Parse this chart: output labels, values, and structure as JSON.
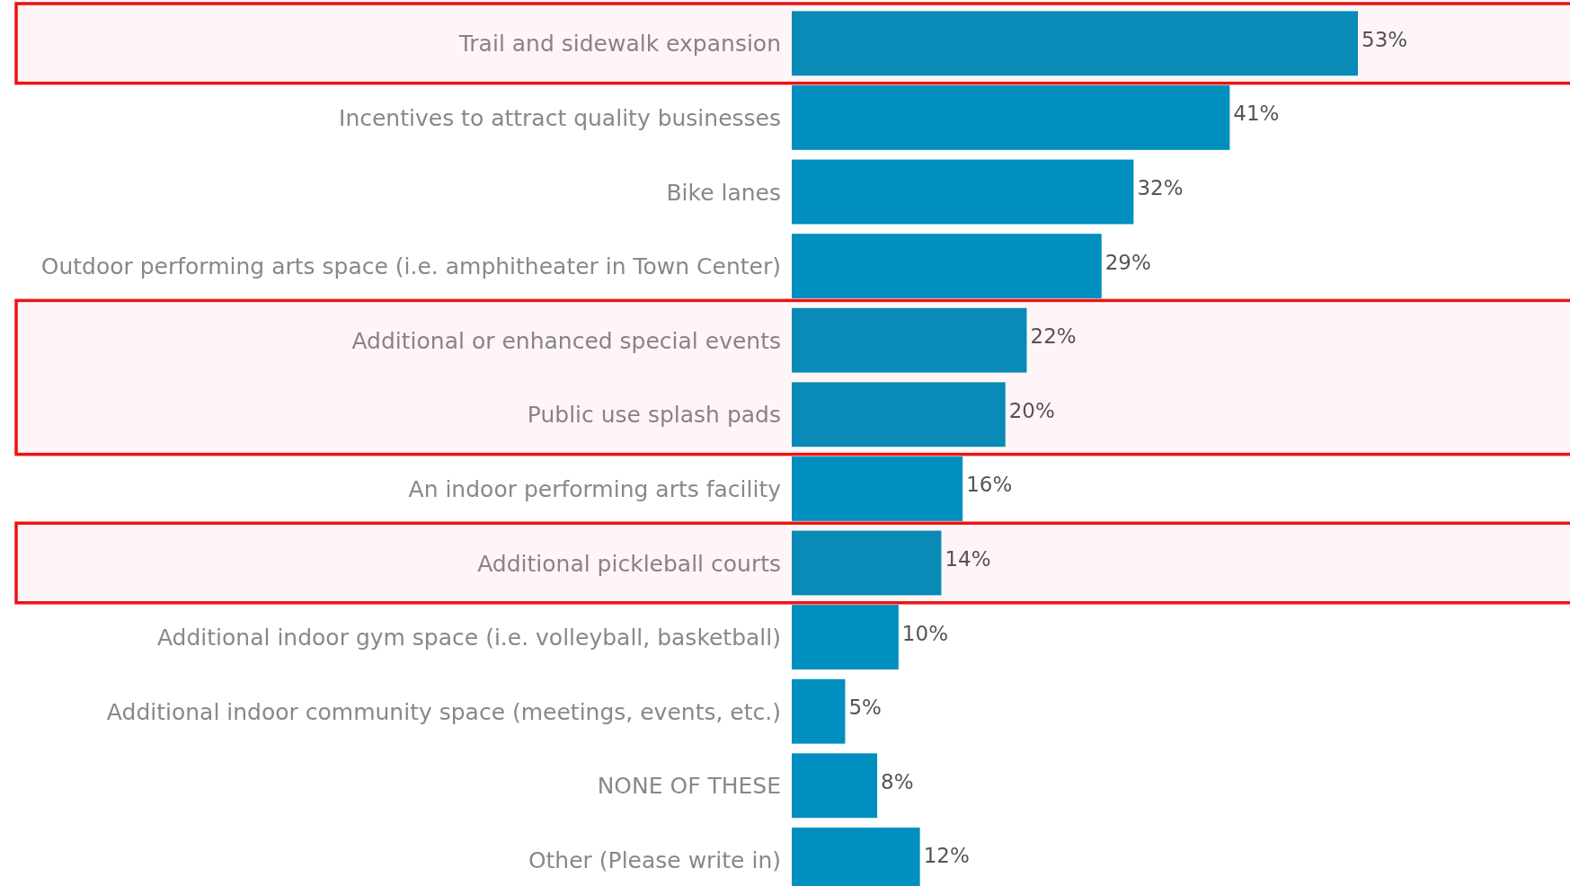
{
  "chart_data": {
    "type": "bar",
    "orientation": "horizontal",
    "categories": [
      "Trail and sidewalk expansion",
      "Incentives to attract quality businesses",
      "Bike lanes",
      "Outdoor performing arts space (i.e. amphitheater in Town Center)",
      "Additional or enhanced special events",
      "Public use splash pads",
      "An indoor performing arts facility",
      "Additional pickleball courts",
      "Additional indoor gym space (i.e. volleyball, basketball)",
      "Additional indoor community space (meetings, events, etc.)",
      "NONE OF THESE",
      "Other (Please write in)"
    ],
    "values": [
      53,
      41,
      32,
      29,
      22,
      20,
      16,
      14,
      10,
      5,
      8,
      12
    ],
    "value_labels": [
      "53%",
      "41%",
      "32%",
      "29%",
      "22%",
      "20%",
      "16%",
      "14%",
      "10%",
      "5%",
      "8%",
      "12%"
    ],
    "color": "#008fbe",
    "bands": [
      {
        "axis": "y",
        "from": "Trail and sidewalk expansion",
        "to": "Trail and sidewalk expansion",
        "color": "#ee1111"
      },
      {
        "axis": "y",
        "from": "Additional or enhanced special events",
        "to": "Public use splash pads",
        "color": "#ee1111"
      },
      {
        "axis": "y",
        "from": "Additional pickleball courts",
        "to": "Additional pickleball courts",
        "color": "#ee1111"
      }
    ]
  }
}
